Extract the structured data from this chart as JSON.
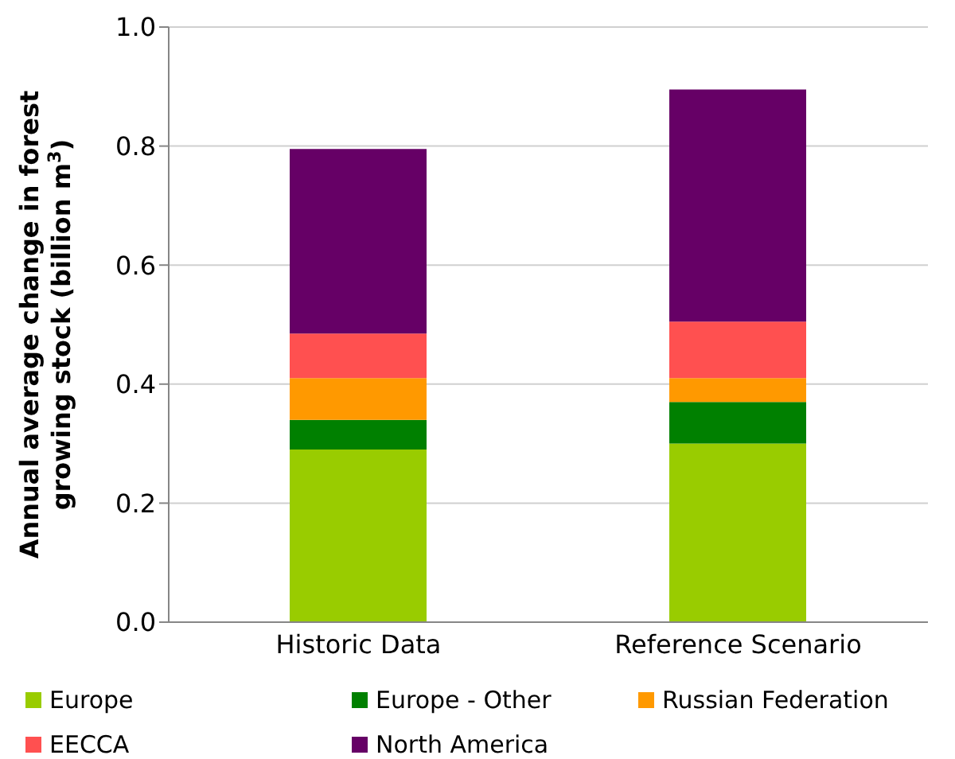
{
  "chart_data": {
    "type": "bar",
    "stacked": true,
    "ylabel": "Annual average change in forest growing stock (billion m$^{3}$)",
    "categories": [
      "Historic Data",
      "Reference Scenario"
    ],
    "series": [
      {
        "name": "Europe",
        "color": "#99cc00",
        "values": [
          0.29,
          0.3
        ]
      },
      {
        "name": "Europe - Other",
        "color": "#008000",
        "values": [
          0.05,
          0.07
        ]
      },
      {
        "name": "Russian Federation",
        "color": "#ff9900",
        "values": [
          0.07,
          0.04
        ]
      },
      {
        "name": "EECCA",
        "color": "#ff5050",
        "values": [
          0.075,
          0.095
        ]
      },
      {
        "name": "North America",
        "color": "#660066",
        "values": [
          0.31,
          0.39
        ]
      }
    ],
    "ylim": [
      0,
      1
    ],
    "yticks": [
      {
        "value": 0,
        "label": "0.0"
      },
      {
        "value": 0.2,
        "label": "0.2"
      },
      {
        "value": 0.4,
        "label": "0.4"
      },
      {
        "value": 0.6,
        "label": "0.6"
      },
      {
        "value": 0.8,
        "label": "0.8"
      },
      {
        "value": 1,
        "label": "1.0"
      }
    ],
    "grid": "y",
    "legend": "bottom"
  }
}
